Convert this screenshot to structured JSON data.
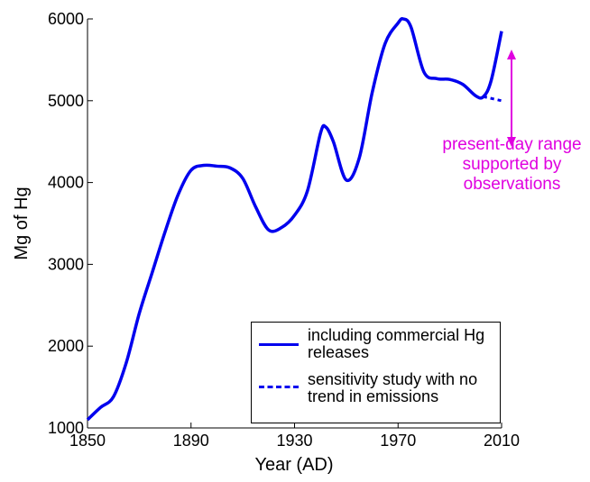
{
  "chart_data": {
    "type": "line",
    "xlabel": "Year (AD)",
    "ylabel": "Mg of Hg",
    "annotation": "present-day range supported by observations",
    "xlim": [
      1850,
      2010
    ],
    "xticks": [
      1850,
      1890,
      1930,
      1970,
      2010
    ],
    "ylim": [
      1000,
      6000
    ],
    "yticks": [
      1000,
      2000,
      3000,
      4000,
      5000,
      6000
    ],
    "grid": false,
    "legend": "lower right",
    "series": [
      {
        "name": "including commercial Hg releases",
        "color": "#0000ee",
        "dash": false,
        "x": [
          1850,
          1855,
          1860,
          1865,
          1870,
          1875,
          1880,
          1885,
          1890,
          1895,
          1900,
          1905,
          1910,
          1915,
          1920,
          1925,
          1930,
          1935,
          1940,
          1942,
          1945,
          1950,
          1955,
          1960,
          1965,
          1970,
          1972,
          1975,
          1980,
          1985,
          1990,
          1995,
          2000,
          2003,
          2006,
          2010
        ],
        "values": [
          1100,
          1250,
          1380,
          1800,
          2400,
          2900,
          3400,
          3850,
          4150,
          4210,
          4200,
          4180,
          4050,
          3700,
          3420,
          3450,
          3600,
          3900,
          4600,
          4680,
          4500,
          4030,
          4300,
          5100,
          5700,
          5950,
          6000,
          5900,
          5350,
          5270,
          5260,
          5200,
          5060,
          5050,
          5250,
          5850
        ]
      },
      {
        "name": "sensitivity study with no trend in emissions",
        "color": "#0000ee",
        "dash": true,
        "x": [
          2003,
          2010
        ],
        "values": [
          5050,
          5000
        ]
      }
    ]
  }
}
